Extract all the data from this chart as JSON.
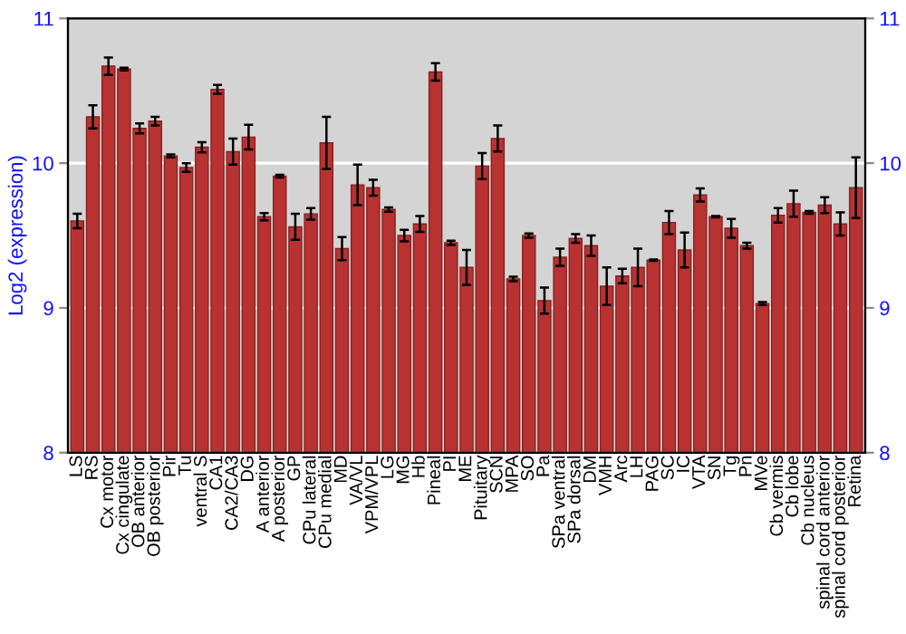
{
  "chart_data": {
    "type": "bar",
    "ylabel": "Log2 (expression)",
    "categories": [
      "LS",
      "RS",
      "Cx motor",
      "Cx cingulate",
      "OB anterior",
      "OB posterior",
      "Pir",
      "Tu",
      "ventral S",
      "CA1",
      "CA2/CA3",
      "DG",
      "A anterior",
      "A posterior",
      "GP",
      "CPu lateral",
      "CPu medial",
      "MD",
      "VA/VL",
      "VPM/VPL",
      "LG",
      "MG",
      "Hb",
      "Pineal",
      "PI",
      "ME",
      "Pituitary",
      "SCN",
      "MPA",
      "SO",
      "Pa",
      "SPa ventral",
      "SPa dorsal",
      "DM",
      "VMH",
      "Arc",
      "LH",
      "PAG",
      "SC",
      "IC",
      "VTA",
      "SN",
      "Tg",
      "Pn",
      "MVe",
      "Cb vermis",
      "Cb lobe",
      "Cb nucleus",
      "spinal cord anterior",
      "spinal cord posterior",
      "Retina"
    ],
    "values": [
      9.6,
      10.32,
      10.67,
      10.65,
      10.24,
      10.29,
      10.05,
      9.97,
      10.11,
      10.51,
      10.08,
      10.18,
      9.63,
      9.91,
      9.56,
      9.65,
      10.14,
      9.41,
      9.85,
      9.83,
      9.68,
      9.5,
      9.58,
      10.63,
      9.45,
      9.28,
      9.98,
      10.17,
      9.2,
      9.5,
      9.05,
      9.35,
      9.48,
      9.43,
      9.15,
      9.22,
      9.28,
      9.33,
      9.59,
      9.4,
      9.78,
      9.63,
      9.55,
      9.43,
      9.03,
      9.64,
      9.72,
      9.66,
      9.71,
      9.58,
      9.83
    ],
    "errors": [
      0.05,
      0.08,
      0.06,
      0.01,
      0.035,
      0.03,
      0.01,
      0.03,
      0.035,
      0.03,
      0.09,
      0.085,
      0.025,
      0.01,
      0.09,
      0.04,
      0.18,
      0.08,
      0.14,
      0.055,
      0.015,
      0.04,
      0.055,
      0.06,
      0.015,
      0.12,
      0.09,
      0.09,
      0.015,
      0.015,
      0.09,
      0.06,
      0.03,
      0.07,
      0.13,
      0.05,
      0.13,
      0.005,
      0.08,
      0.12,
      0.045,
      0.005,
      0.065,
      0.02,
      0.01,
      0.05,
      0.09,
      0.01,
      0.055,
      0.08,
      0.21
    ],
    "color": "#b83232",
    "ylim": [
      8,
      11
    ],
    "yticks": [
      8,
      9,
      10,
      11
    ],
    "y2lim": [
      8,
      11
    ],
    "y2ticks": [
      8,
      9,
      10,
      11
    ],
    "grid": "y",
    "legend": false
  }
}
